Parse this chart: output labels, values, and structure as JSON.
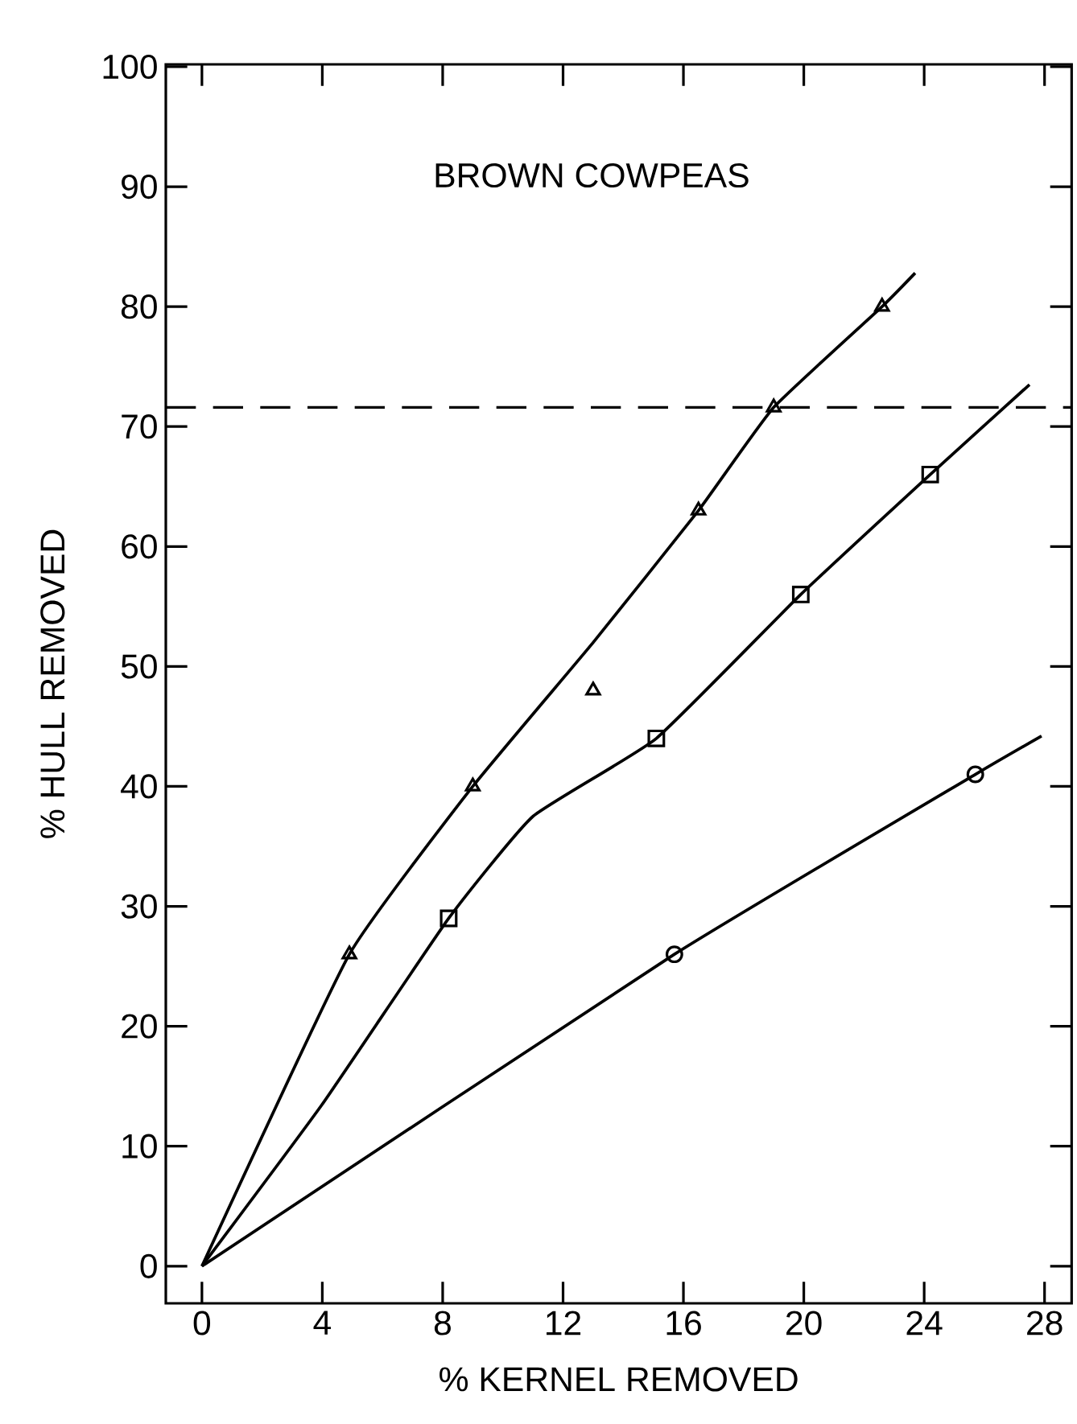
{
  "chart_data": {
    "type": "scatter",
    "title": "BROWN COWPEAS",
    "xlabel": "% KERNEL REMOVED",
    "ylabel": "% HULL REMOVED",
    "xlim": [
      -1.2,
      28.9
    ],
    "ylim": [
      -3.1,
      100.2
    ],
    "xticks": [
      0,
      4,
      8,
      12,
      16,
      20,
      24,
      28
    ],
    "yticks": [
      0,
      10,
      20,
      30,
      40,
      50,
      60,
      70,
      80,
      90,
      100
    ],
    "grid": false,
    "series": [
      {
        "marker": "triangle",
        "color": "#000000",
        "x": [
          4.9,
          9,
          13,
          16.5,
          19,
          22.6
        ],
        "values": [
          26,
          40,
          48,
          63,
          71.6,
          80
        ]
      },
      {
        "marker": "square",
        "color": "#000000",
        "x": [
          8.2,
          15.1,
          19.9,
          24.2
        ],
        "values": [
          29,
          44,
          56,
          66
        ]
      },
      {
        "marker": "circle",
        "color": "#000000",
        "x": [
          15.7,
          25.7
        ],
        "values": [
          26,
          41
        ]
      },
      {
        "type": "line",
        "marker": "none",
        "color": "#000000",
        "x": [
          0,
          4.9,
          9,
          13,
          16.5,
          19,
          22.6,
          23.7
        ],
        "values": [
          0,
          26,
          40,
          52,
          63,
          71.6,
          80,
          82.8
        ]
      },
      {
        "type": "line",
        "marker": "none",
        "color": "#000000",
        "x": [
          0,
          4,
          8.2,
          11,
          15.1,
          19.9,
          24.2,
          27.5
        ],
        "values": [
          0,
          13.5,
          29,
          37.5,
          44,
          56,
          66,
          73.5
        ]
      },
      {
        "type": "line",
        "marker": "none",
        "color": "#000000",
        "x": [
          0,
          15.7,
          25.7,
          27.9
        ],
        "values": [
          0,
          26,
          41,
          44.2
        ]
      }
    ],
    "ref_lines": [
      {
        "axis": "y",
        "value": 71.6,
        "line_style": "dashed",
        "color": "#000000"
      }
    ]
  }
}
